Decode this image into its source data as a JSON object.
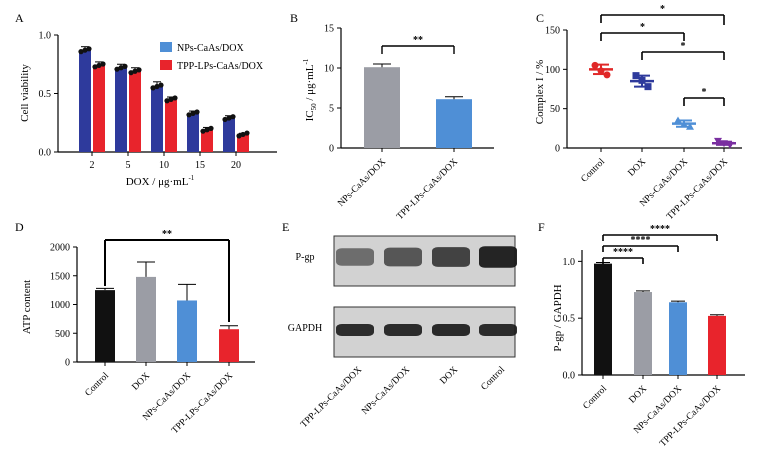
{
  "colors": {
    "blue_dark": "#2e3a9c",
    "red": "#e8242c",
    "blue_light": "#4f8fd6",
    "gray": "#9b9da5",
    "black": "#111111",
    "purple": "#7a2fa0",
    "control_red": "#e02828",
    "wb_band": "#1a1a1a",
    "wb_bg": "#d2d2d2"
  },
  "chart_data": [
    {
      "panel": "A",
      "type": "bar",
      "ylabel": "Cell viability",
      "xlabel": "DOX / μg·mL",
      "xlabel_sup": "-1",
      "categories": [
        "2",
        "5",
        "10",
        "15",
        "20"
      ],
      "yticks": [
        "0.0",
        "0.5",
        "1.0"
      ],
      "ylim": [
        0,
        1.0
      ],
      "series": [
        {
          "name": "NPs-CaAs/DOX",
          "values": [
            0.87,
            0.72,
            0.56,
            0.33,
            0.29
          ],
          "errors": [
            0.03,
            0.03,
            0.04,
            0.02,
            0.02
          ]
        },
        {
          "name": "TPP-LPs-CaAs/DOX",
          "values": [
            0.74,
            0.69,
            0.45,
            0.19,
            0.15
          ],
          "errors": [
            0.03,
            0.03,
            0.02,
            0.02,
            0.01
          ]
        }
      ]
    },
    {
      "panel": "B",
      "type": "bar",
      "ylabel_prefix": "IC",
      "ylabel_sub": "50",
      "ylabel_unit": " / μg·mL",
      "ylabel_sup": "-1",
      "categories": [
        "NPs-CaAs/DOX",
        "TPP-LPs-CaAs/DOX"
      ],
      "values": [
        10.1,
        6.1
      ],
      "errors": [
        0.4,
        0.3
      ],
      "yticks": [
        "0",
        "5",
        "10",
        "15"
      ],
      "ylim": [
        0,
        15
      ],
      "significance": [
        {
          "from": 0,
          "to": 1,
          "label": "**"
        }
      ]
    },
    {
      "panel": "C",
      "type": "scatter",
      "ylabel": "Complex I / %",
      "categories": [
        "Control",
        "DOX",
        "NPs-CaAs/DOX",
        "TPP-LPs-CaAs/DOX"
      ],
      "values": [
        [
          105,
          98,
          93
        ],
        [
          92,
          86,
          78
        ],
        [
          35,
          30,
          27
        ],
        [
          9,
          6,
          4
        ]
      ],
      "means": [
        100,
        85,
        31,
        6
      ],
      "errors": [
        6,
        7,
        4,
        2
      ],
      "yticks": [
        "0",
        "50",
        "100",
        "150"
      ],
      "ylim": [
        0,
        150
      ],
      "significance": [
        {
          "from": 0,
          "to": 3,
          "label": "*"
        },
        {
          "from": 0,
          "to": 2,
          "label": "*"
        },
        {
          "from": 1,
          "to": 3,
          "label": "*"
        },
        {
          "from": 2,
          "to": 3,
          "label": "*"
        }
      ]
    },
    {
      "panel": "D",
      "type": "bar",
      "ylabel": "ATP content",
      "categories": [
        "Control",
        "DOX",
        "NPs-CaAs/DOX",
        "TPP-LPs-CaAs/DOX"
      ],
      "values": [
        1250,
        1480,
        1070,
        570
      ],
      "errors": [
        30,
        260,
        280,
        60
      ],
      "yticks": [
        "0",
        "500",
        "1000",
        "1500",
        "2000"
      ],
      "ylim": [
        0,
        2000
      ],
      "significance": [
        {
          "from": 0,
          "to": 3,
          "label": "**"
        }
      ]
    },
    {
      "panel": "E",
      "type": "western_blot",
      "rows": [
        "P-gp",
        "GAPDH"
      ],
      "lanes": [
        "TPP-LPs-CaAs/DOX",
        "NPs-CaAs/DOX",
        "DOX",
        "Control"
      ],
      "intensity": [
        [
          0.55,
          0.68,
          0.78,
          0.95
        ],
        [
          0.9,
          0.9,
          0.92,
          0.9
        ]
      ]
    },
    {
      "panel": "F",
      "type": "bar",
      "ylabel": "P-gp / GAPDH",
      "categories": [
        "Control",
        "DOX",
        "NPs-CaAs/DOX",
        "TPP-LPs-CaAs/DOX"
      ],
      "values": [
        0.98,
        0.73,
        0.64,
        0.52
      ],
      "errors": [
        0.01,
        0.01,
        0.01,
        0.01
      ],
      "yticks": [
        "0.0",
        "0.5",
        "1.0"
      ],
      "ylim": [
        0,
        1.1
      ],
      "significance": [
        {
          "from": 0,
          "to": 1,
          "label": "****"
        },
        {
          "from": 0,
          "to": 2,
          "label": "****"
        },
        {
          "from": 0,
          "to": 3,
          "label": "****"
        }
      ]
    }
  ]
}
